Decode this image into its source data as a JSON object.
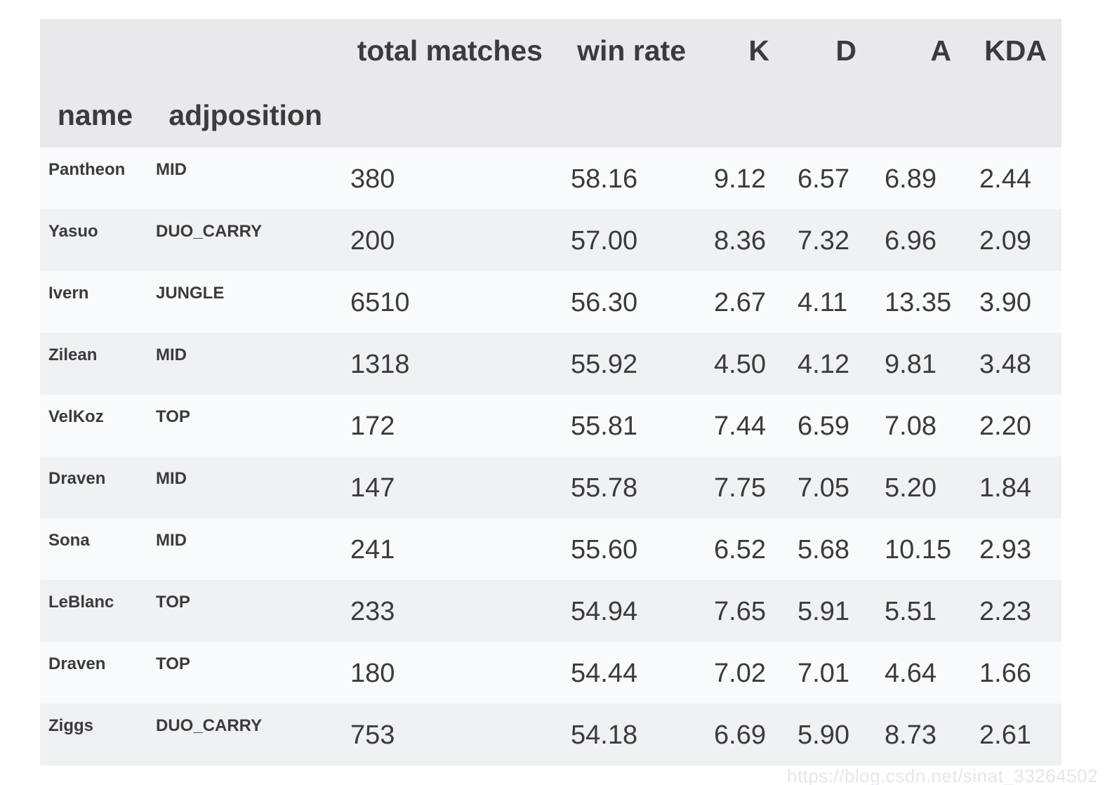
{
  "chart_data": {
    "type": "table",
    "title": "champion win-rate statistics table",
    "index_names": [
      "name",
      "adjposition"
    ],
    "columns": [
      "total matches",
      "win rate",
      "K",
      "D",
      "A",
      "KDA"
    ],
    "rows": [
      {
        "cells": [
          "Pantheon",
          "MID",
          "380",
          "58.16",
          "9.12",
          "6.57",
          "6.89",
          "2.44"
        ]
      },
      {
        "cells": [
          "Yasuo",
          "DUO_CARRY",
          "200",
          "57.00",
          "8.36",
          "7.32",
          "6.96",
          "2.09"
        ]
      },
      {
        "cells": [
          "Ivern",
          "JUNGLE",
          "6510",
          "56.30",
          "2.67",
          "4.11",
          "13.35",
          "3.90"
        ]
      },
      {
        "cells": [
          "Zilean",
          "MID",
          "1318",
          "55.92",
          "4.50",
          "4.12",
          "9.81",
          "3.48"
        ]
      },
      {
        "cells": [
          "VelKoz",
          "TOP",
          "172",
          "55.81",
          "7.44",
          "6.59",
          "7.08",
          "2.20"
        ]
      },
      {
        "cells": [
          "Draven",
          "MID",
          "147",
          "55.78",
          "7.75",
          "7.05",
          "5.20",
          "1.84"
        ]
      },
      {
        "cells": [
          "Sona",
          "MID",
          "241",
          "55.60",
          "6.52",
          "5.68",
          "10.15",
          "2.93"
        ]
      },
      {
        "cells": [
          "LeBlanc",
          "TOP",
          "233",
          "54.94",
          "7.65",
          "5.91",
          "5.51",
          "2.23"
        ]
      },
      {
        "cells": [
          "Draven",
          "TOP",
          "180",
          "54.44",
          "7.02",
          "7.01",
          "4.64",
          "1.66"
        ]
      },
      {
        "cells": [
          "Ziggs",
          "DUO_CARRY",
          "753",
          "54.18",
          "6.69",
          "5.90",
          "8.73",
          "2.61"
        ]
      }
    ],
    "layout": {
      "header_rows": 2,
      "striped": true,
      "grid": false
    }
  },
  "watermark": {
    "text": "https://blog.csdn.net/sinat_33264502"
  },
  "colors": {
    "header_bg": "#e9e9eb",
    "row_odd_bg": "#f9fafb",
    "row_even_bg": "#f0f1f3",
    "text": "#3b3b3f",
    "watermark_text": "#e3e7ec",
    "page_bg": "#ffffff"
  }
}
